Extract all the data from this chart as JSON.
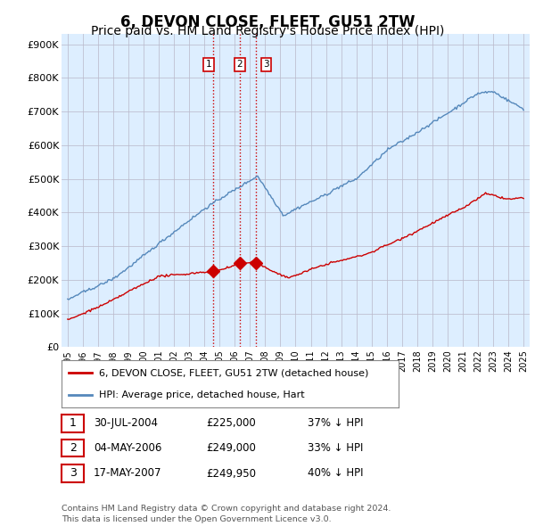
{
  "title": "6, DEVON CLOSE, FLEET, GU51 2TW",
  "subtitle": "Price paid vs. HM Land Registry's House Price Index (HPI)",
  "ylabel_ticks": [
    "£0",
    "£100K",
    "£200K",
    "£300K",
    "£400K",
    "£500K",
    "£600K",
    "£700K",
    "£800K",
    "£900K"
  ],
  "ytick_values": [
    0,
    100000,
    200000,
    300000,
    400000,
    500000,
    600000,
    700000,
    800000,
    900000
  ],
  "ylim": [
    0,
    930000
  ],
  "xlim_start": 1994.6,
  "xlim_end": 2025.4,
  "xtick_years": [
    1995,
    1996,
    1997,
    1998,
    1999,
    2000,
    2001,
    2002,
    2003,
    2004,
    2005,
    2006,
    2007,
    2008,
    2009,
    2010,
    2011,
    2012,
    2013,
    2014,
    2015,
    2016,
    2017,
    2018,
    2019,
    2020,
    2021,
    2022,
    2023,
    2024,
    2025
  ],
  "sale_dates_decimal": [
    2004.578,
    2006.337,
    2007.373
  ],
  "sale_prices": [
    225000,
    249000,
    249950
  ],
  "sale_labels": [
    "1",
    "2",
    "3"
  ],
  "vline_color": "#cc0000",
  "vline_style": ":",
  "dot_color": "#cc0000",
  "hpi_line_color": "#5588bb",
  "price_line_color": "#cc0000",
  "plot_bg_color": "#ddeeff",
  "legend_entries": [
    "6, DEVON CLOSE, FLEET, GU51 2TW (detached house)",
    "HPI: Average price, detached house, Hart"
  ],
  "table_rows": [
    {
      "label": "1",
      "date": "30-JUL-2004",
      "price": "£225,000",
      "hpi": "37% ↓ HPI"
    },
    {
      "label": "2",
      "date": "04-MAY-2006",
      "price": "£249,000",
      "hpi": "33% ↓ HPI"
    },
    {
      "label": "3",
      "date": "17-MAY-2007",
      "price": "£249,950",
      "hpi": "40% ↓ HPI"
    }
  ],
  "footnote": "Contains HM Land Registry data © Crown copyright and database right 2024.\nThis data is licensed under the Open Government Licence v3.0.",
  "background_color": "#ffffff",
  "grid_color": "#bbbbcc",
  "title_fontsize": 12,
  "subtitle_fontsize": 10
}
